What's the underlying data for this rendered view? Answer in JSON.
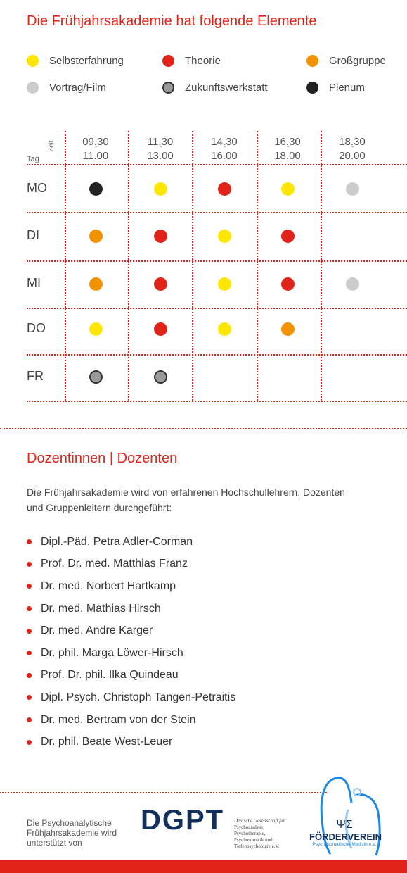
{
  "schedule_section": {
    "title": "Die Frühjahrsakademie hat folgende Elemente",
    "legend": [
      {
        "label": "Selbsterfahrung",
        "color": "#ffe600",
        "icon": "yellow-dot"
      },
      {
        "label": "Theorie",
        "color": "#e2231a",
        "icon": "red-dot"
      },
      {
        "label": "Großgruppe",
        "color": "#f39200",
        "icon": "orange-dot"
      },
      {
        "label": "Vortrag/Film",
        "color": "#cccccc",
        "icon": "gray-dot"
      },
      {
        "label": "Zukunftswerkstatt",
        "color": "#999999",
        "icon": "ring-dot"
      },
      {
        "label": "Plenum",
        "color": "#222222",
        "icon": "black-dot"
      }
    ],
    "table": {
      "header_zeit": "Zeit",
      "header_tag": "Tag",
      "times": [
        {
          "start": "09.30",
          "end": "11.00"
        },
        {
          "start": "11.30",
          "end": "13.00"
        },
        {
          "start": "14.30",
          "end": "16.00"
        },
        {
          "start": "16.30",
          "end": "18.00"
        },
        {
          "start": "18.30",
          "end": "20.00"
        }
      ],
      "days": [
        "MO",
        "DI",
        "MI",
        "DO",
        "FR"
      ],
      "cells": [
        [
          "Plenum",
          "Selbsterfahrung",
          "Theorie",
          "Selbsterfahrung",
          "Vortrag/Film"
        ],
        [
          "Großgruppe",
          "Theorie",
          "Selbsterfahrung",
          "Theorie",
          ""
        ],
        [
          "Großgruppe",
          "Theorie",
          "Selbsterfahrung",
          "Theorie",
          "Vortrag/Film"
        ],
        [
          "Selbsterfahrung",
          "Theorie",
          "Selbsterfahrung",
          "Großgruppe",
          ""
        ],
        [
          "Zukunftswerkstatt",
          "Zukunftswerkstatt",
          "",
          "",
          ""
        ]
      ]
    }
  },
  "lecturers_section": {
    "title": "Dozentinnen | Dozenten",
    "intro_line1": "Die Frühjahrsakademie wird von erfahrenen Hochschullehrern, Dozenten",
    "intro_line2": "und Gruppenleitern durchgeführt:",
    "names": [
      "Dipl.-Päd. Petra Adler-Corman",
      "Prof. Dr. med. Matthias Franz",
      "Dr. med. Norbert Hartkamp",
      "Dr. med. Mathias Hirsch",
      "Dr. med. Andre Karger",
      "Dr. phil. Marga Löwer-Hirsch",
      "Prof. Dr. phil. Ilka Quindeau",
      "Dipl. Psych. Christoph Tangen-Petraitis",
      "Dr. med. Bertram von der Stein",
      "Dr. phil. Beate West-Leuer"
    ]
  },
  "footer": {
    "support_line1": "Die  Psychoanalytische",
    "support_line2": "Frühjahrsakademie wird",
    "support_line3": "unterstützt von",
    "dgpt_logo": "DGPT",
    "dgpt_line1": "Deutsche Gesellschaft für",
    "dgpt_line2": "Psychoanalyse,",
    "dgpt_line3": "Psychotherapie,",
    "dgpt_line4": "Psychosomatik und",
    "dgpt_line5": "Tiefenpsychologie e.V.",
    "foerder_symbol": "ΨΣ",
    "foerder_name": "FÖRDERVEREIN",
    "foerder_sub": "Psychosomatische Medizin e.V."
  }
}
